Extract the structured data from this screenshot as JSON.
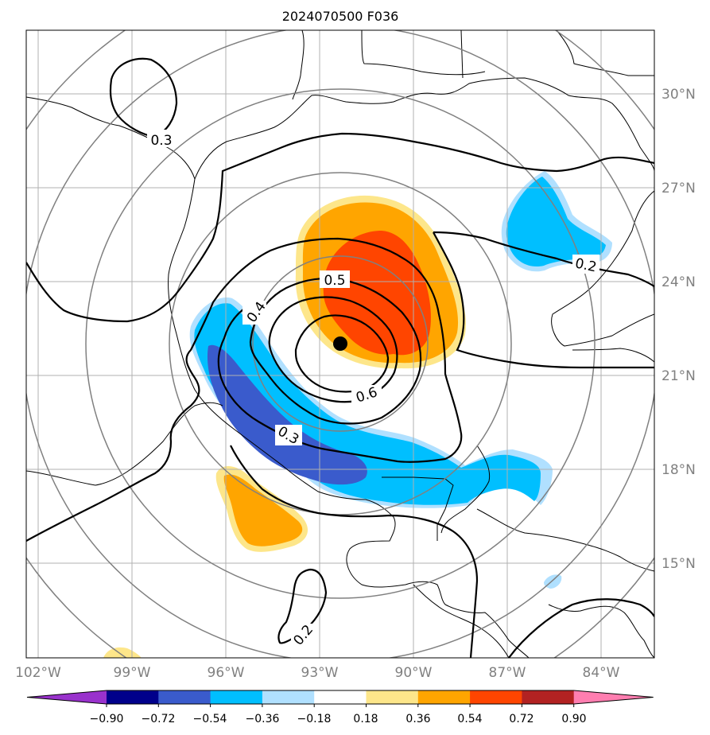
{
  "title": "2024070500 F036",
  "longitude_labels": [
    "102°W",
    "99°W",
    "96°W",
    "93°W",
    "90°W",
    "87°W",
    "84°W"
  ],
  "latitude_labels": [
    "30°N",
    "27°N",
    "24°N",
    "21°N",
    "18°N",
    "15°N"
  ],
  "contour_labels": [
    "0.3",
    "0.5",
    "0.4",
    "0.6",
    "0.3",
    "0.2",
    "0.2"
  ],
  "colorbar": {
    "tick_labels": [
      "−0.90",
      "−0.72",
      "−0.54",
      "−0.36",
      "−0.18",
      "0.18",
      "0.36",
      "0.54",
      "0.72",
      "0.90"
    ],
    "colors": [
      "#9932cc",
      "#00008b",
      "#3a5bcc",
      "#00bfff",
      "#b0e0ff",
      "#ffffff",
      "#fde68a",
      "#ffa500",
      "#ff4500",
      "#b22222",
      "#ff7eb0"
    ]
  },
  "storm_center": {
    "lon": -92.2,
    "lat": 22.0
  },
  "range_rings": 5
}
